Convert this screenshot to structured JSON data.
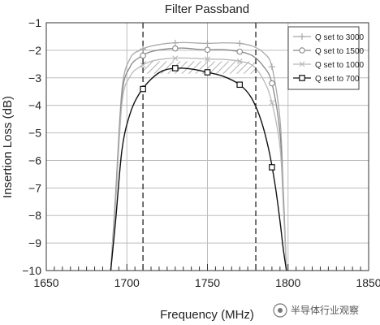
{
  "chart_data": {
    "type": "line",
    "title": "Filter Passband",
    "xlabel": "Frequency (MHz)",
    "ylabel": "Insertion Loss (dB)",
    "xlim": [
      1650,
      1850
    ],
    "ylim": [
      -10,
      -1
    ],
    "x_ticks": [
      1650,
      1700,
      1750,
      1800,
      1850
    ],
    "y_ticks": [
      -1,
      -2,
      -3,
      -4,
      -5,
      -6,
      -7,
      -8,
      -9,
      -10
    ],
    "x_tick_labels": [
      "1650",
      "1700",
      "1750",
      "1800",
      "1850"
    ],
    "y_tick_labels": [
      "−1",
      "−2",
      "−3",
      "−4",
      "−5",
      "−6",
      "−7",
      "−8",
      "−9",
      "−10"
    ],
    "grid": true,
    "legend_position": "top-right",
    "markers": [
      1710,
      1780
    ],
    "spec_band": {
      "x": [
        1710,
        1780
      ],
      "y_top": -2.4,
      "y_bottom": -2.85
    },
    "series": [
      {
        "name": "Q  set to 3000",
        "color": "#a8a8a8",
        "marker": "plus",
        "x": [
          1690,
          1693,
          1697,
          1702,
          1708,
          1715,
          1725,
          1735,
          1745,
          1750,
          1760,
          1770,
          1778,
          1785,
          1790,
          1795,
          1797,
          1799
        ],
        "y": [
          -10,
          -7.2,
          -3.4,
          -2.3,
          -2.0,
          -1.85,
          -1.75,
          -1.72,
          -1.74,
          -1.75,
          -1.73,
          -1.75,
          -1.85,
          -2.1,
          -2.6,
          -4.5,
          -7.0,
          -10
        ],
        "marker_x": [
          1710,
          1730,
          1750,
          1770,
          1790
        ]
      },
      {
        "name": "Q  set to 1500",
        "color": "#888888",
        "marker": "circle",
        "x": [
          1690,
          1693,
          1697,
          1702,
          1708,
          1715,
          1725,
          1735,
          1745,
          1750,
          1760,
          1770,
          1778,
          1785,
          1790,
          1795,
          1797,
          1799
        ],
        "y": [
          -10,
          -7.4,
          -3.6,
          -2.6,
          -2.25,
          -2.05,
          -1.95,
          -1.92,
          -1.97,
          -1.98,
          -1.98,
          -2.05,
          -2.2,
          -2.6,
          -3.2,
          -5.0,
          -7.3,
          -10
        ],
        "marker_x": [
          1710,
          1730,
          1750,
          1770,
          1790
        ]
      },
      {
        "name": "Q  set to 1000",
        "color": "#b8b8b8",
        "marker": "x",
        "x": [
          1690,
          1693,
          1697,
          1702,
          1708,
          1715,
          1725,
          1735,
          1745,
          1750,
          1760,
          1770,
          1778,
          1785,
          1790,
          1795,
          1797,
          1799
        ],
        "y": [
          -10,
          -7.6,
          -3.9,
          -2.95,
          -2.6,
          -2.4,
          -2.3,
          -2.28,
          -2.3,
          -2.32,
          -2.33,
          -2.4,
          -2.55,
          -3.1,
          -3.9,
          -5.5,
          -7.6,
          -10
        ],
        "marker_x": [
          1710,
          1730,
          1750,
          1770,
          1790
        ]
      },
      {
        "name": "Q  set to 700",
        "color": "#111111",
        "marker": "square",
        "x": [
          1690,
          1693,
          1697,
          1702,
          1708,
          1715,
          1722,
          1730,
          1740,
          1750,
          1760,
          1770,
          1777,
          1783,
          1788,
          1792,
          1795,
          1797,
          1799
        ],
        "y": [
          -10,
          -8.2,
          -5.6,
          -4.3,
          -3.55,
          -3.05,
          -2.75,
          -2.65,
          -2.68,
          -2.8,
          -2.95,
          -3.25,
          -3.7,
          -4.5,
          -5.6,
          -6.9,
          -8.2,
          -9.2,
          -10
        ],
        "marker_x": [
          1710,
          1730,
          1750,
          1770,
          1790
        ]
      }
    ]
  },
  "watermark": "半导体行业观察"
}
